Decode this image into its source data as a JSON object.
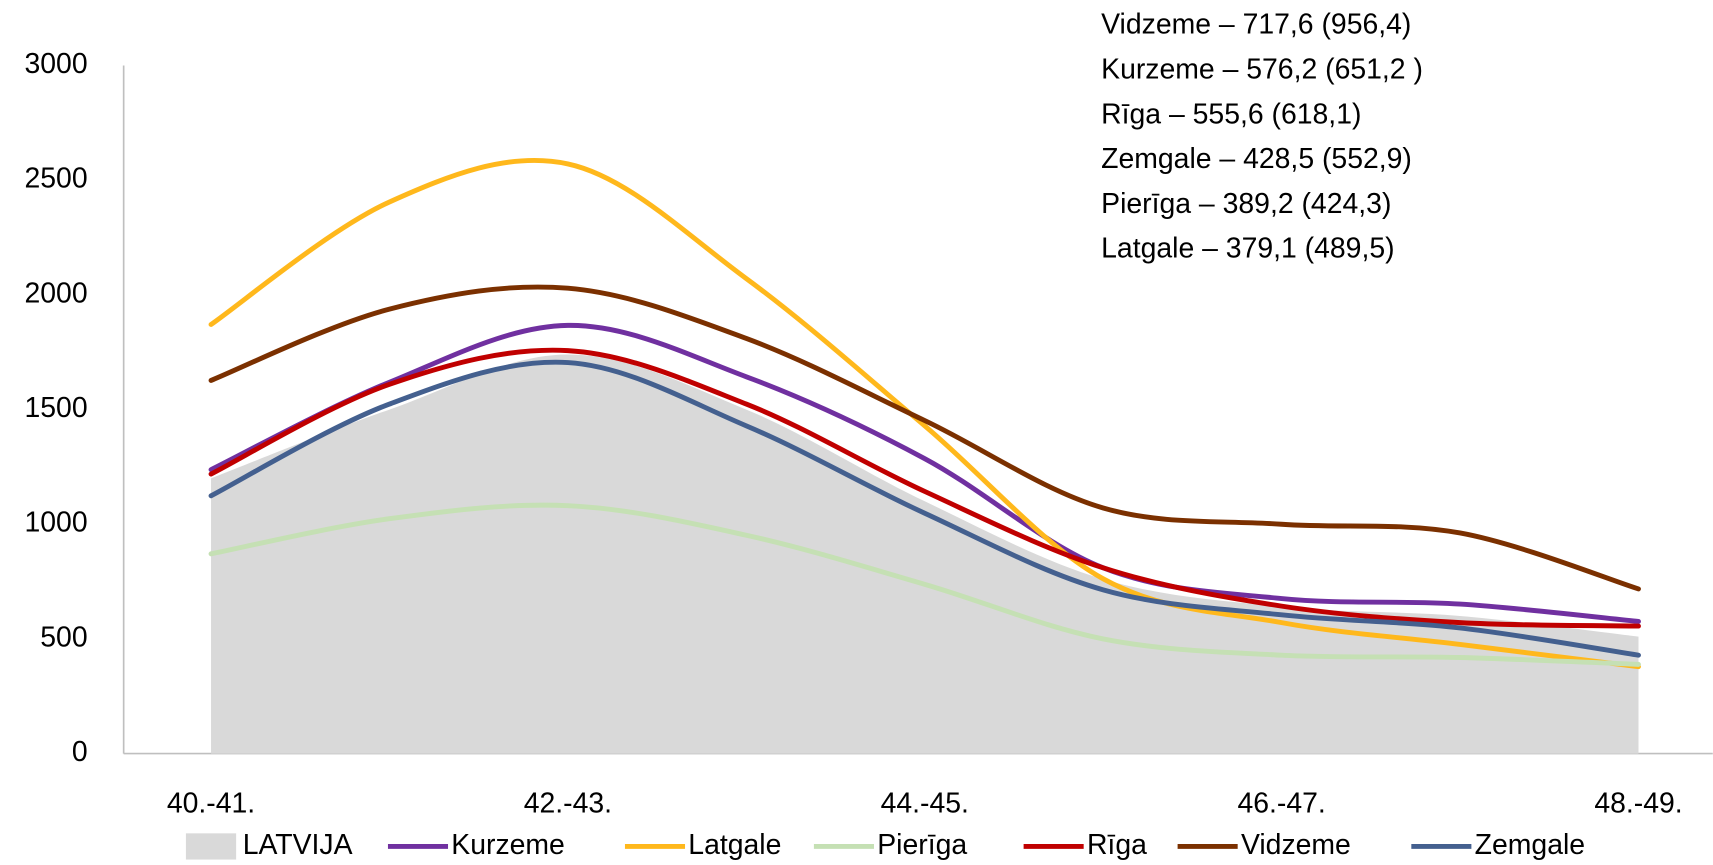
{
  "chart_data": {
    "type": "line",
    "annotations": [
      "Vidzeme – 717,6 (956,4)",
      "Kurzeme – 576,2 (651,2 )",
      "Rīga – 555,6 (618,1)",
      "Zemgale –  428,5 (552,9)",
      "Pierīga –  389,2 (424,3)",
      "Latgale – 379,1  (489,5)"
    ],
    "categories": [
      "40.-41.",
      null,
      "42.-43.",
      null,
      "44.-45.",
      null,
      "46.-47.",
      null,
      "48.-49."
    ],
    "ylim": [
      0,
      3000
    ],
    "yticks": [
      0,
      500,
      1000,
      1500,
      2000,
      2500,
      3000
    ],
    "series": [
      {
        "name": "LATVIJA",
        "kind": "area",
        "color": "#d9d9d9",
        "values": [
          1200,
          1500,
          1740,
          1500,
          1100,
          760,
          640,
          600,
          510
        ]
      },
      {
        "name": "Kurzeme",
        "color": "#7030a0",
        "values": [
          1238,
          1619,
          1867,
          1643,
          1286,
          810,
          676,
          652,
          576
        ]
      },
      {
        "name": "Latgale",
        "color": "#ffb81c",
        "values": [
          1871,
          2405,
          2571,
          2071,
          1429,
          762,
          571,
          476,
          379
        ]
      },
      {
        "name": "Pierīga",
        "color": "#c5e0b4",
        "values": [
          871,
          1024,
          1081,
          952,
          738,
          500,
          429,
          419,
          389
        ]
      },
      {
        "name": "Rīga",
        "color": "#c00000",
        "values": [
          1219,
          1610,
          1757,
          1524,
          1143,
          810,
          643,
          571,
          556
        ]
      },
      {
        "name": "Vidzeme",
        "color": "#7b3000",
        "values": [
          1627,
          1938,
          2029,
          1810,
          1452,
          1071,
          1000,
          962,
          718
        ]
      },
      {
        "name": "Zemgale",
        "color": "#44608f",
        "values": [
          1124,
          1524,
          1705,
          1429,
          1048,
          714,
          605,
          548,
          429
        ]
      }
    ]
  }
}
